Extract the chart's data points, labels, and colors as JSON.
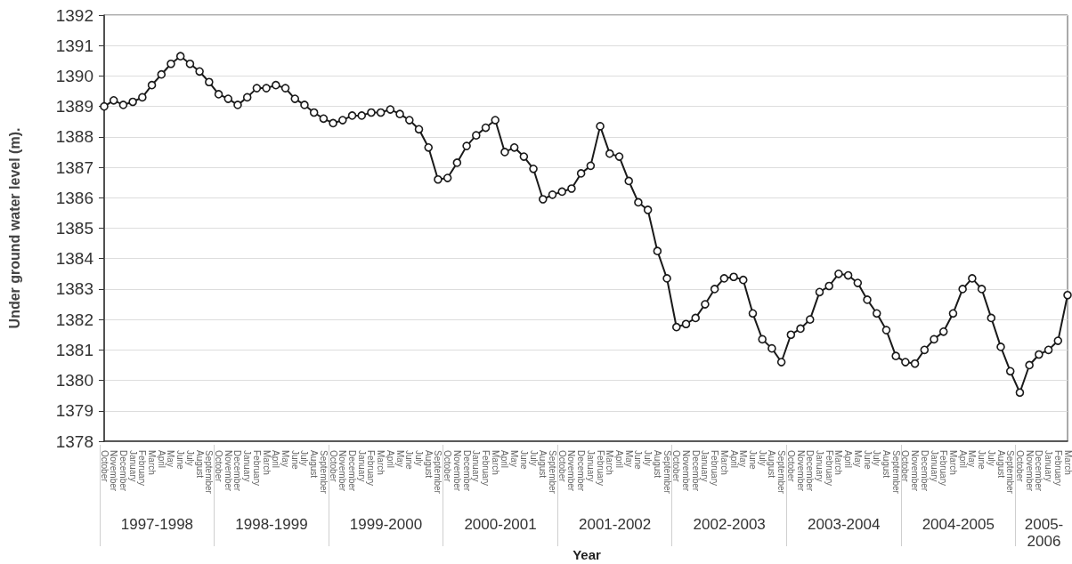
{
  "chart_data": {
    "type": "line",
    "ylabel": "Under ground water level (m).",
    "categories": [
      "October",
      "November",
      "December",
      "January",
      "February",
      "March",
      "April",
      "May",
      "June",
      "July",
      "August",
      "September",
      "October",
      "November",
      "December",
      "January",
      "February",
      "March",
      "April",
      "May",
      "June",
      "July",
      "August",
      "September",
      "October",
      "November",
      "December",
      "January",
      "February",
      "March",
      "April",
      "May",
      "June",
      "July",
      "August",
      "September",
      "October",
      "November",
      "December",
      "January",
      "February",
      "March",
      "April",
      "May",
      "June",
      "July",
      "August",
      "September",
      "October",
      "November",
      "December",
      "January",
      "February",
      "March",
      "April",
      "May",
      "June",
      "July",
      "August",
      "September",
      "October",
      "November",
      "December",
      "January",
      "February",
      "March",
      "April",
      "May",
      "June",
      "July",
      "August",
      "September",
      "October",
      "November",
      "December",
      "January",
      "February",
      "March",
      "April",
      "May",
      "June",
      "July",
      "August",
      "September",
      "October",
      "November",
      "December",
      "January",
      "February",
      "March",
      "April",
      "May",
      "June",
      "July",
      "August",
      "September",
      "October",
      "November",
      "December",
      "January",
      "February",
      "March"
    ],
    "series": [
      {
        "color": "#1a1a1a",
        "values": [
          1389.0,
          1389.2,
          1389.05,
          1389.15,
          1389.3,
          1389.7,
          1390.05,
          1390.4,
          1390.65,
          1390.4,
          1390.15,
          1389.8,
          1389.4,
          1389.25,
          1389.05,
          1389.3,
          1389.6,
          1389.6,
          1389.7,
          1389.6,
          1389.25,
          1389.05,
          1388.8,
          1388.6,
          1388.45,
          1388.55,
          1388.7,
          1388.7,
          1388.8,
          1388.8,
          1388.9,
          1388.75,
          1388.55,
          1388.25,
          1387.65,
          1386.6,
          1386.65,
          1387.15,
          1387.7,
          1388.05,
          1388.3,
          1388.55,
          1387.5,
          1387.65,
          1387.35,
          1386.95,
          1385.95,
          1386.1,
          1386.2,
          1386.3,
          1386.8,
          1387.05,
          1388.35,
          1387.45,
          1387.35,
          1386.55,
          1385.85,
          1385.6,
          1384.25,
          1383.35,
          1381.75,
          1381.85,
          1382.05,
          1382.5,
          1383.0,
          1383.35,
          1383.4,
          1383.3,
          1382.2,
          1381.35,
          1381.05,
          1380.6,
          1381.5,
          1381.7,
          1382.0,
          1382.9,
          1383.1,
          1383.5,
          1383.45,
          1383.2,
          1382.65,
          1382.2,
          1381.65,
          1380.8,
          1380.6,
          1380.55,
          1381.0,
          1381.35,
          1381.6,
          1382.2,
          1383.0,
          1383.35,
          1383.0,
          1382.05,
          1381.1,
          1380.3,
          1379.6,
          1380.5,
          1380.85,
          1381.0,
          1381.3,
          1382.8
        ]
      }
    ],
    "ylim": [
      1378,
      1392
    ],
    "yticks": [
      1378,
      1379,
      1380,
      1381,
      1382,
      1383,
      1384,
      1385,
      1386,
      1387,
      1388,
      1389,
      1390,
      1391,
      1392
    ],
    "grid": "y",
    "marker": "circle",
    "line_style": "solid",
    "annotations": [
      "1997-1998",
      "1998-1999",
      "1999-2000",
      "2000-2001",
      "2001-2002",
      "2002-2003",
      "2003-2004",
      "2004-2005",
      "2005-2006",
      "Year"
    ]
  }
}
